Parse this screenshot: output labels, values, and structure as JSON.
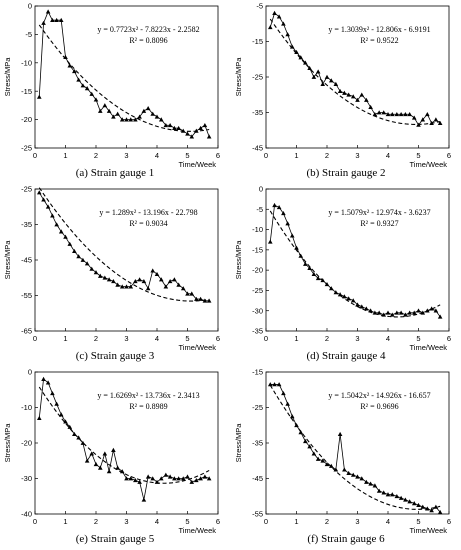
{
  "chart_data": [
    {
      "type": "line",
      "caption": "(a) Strain gauge 1",
      "xlabel": "Time/Week",
      "ylabel": "Stress/MPa",
      "xlim": [
        0,
        6
      ],
      "ylim": [
        -25,
        0
      ],
      "xticks": [
        "0",
        "1",
        "2",
        "3",
        "4",
        "5",
        "6"
      ],
      "yticks": [
        "0",
        "-5",
        "-10",
        "-15",
        "-20",
        "-25"
      ],
      "fit_equation": "y = 0.7723x² - 7.8223x - 2.2582",
      "r_squared": "R² = 0.8096",
      "fit": [
        0.7723,
        -7.8223,
        -2.2582
      ],
      "x": [
        0.14,
        0.28,
        0.43,
        0.57,
        0.71,
        0.86,
        1.0,
        1.14,
        1.29,
        1.43,
        1.57,
        1.71,
        1.86,
        2.0,
        2.14,
        2.29,
        2.43,
        2.57,
        2.71,
        2.86,
        3.0,
        3.14,
        3.29,
        3.43,
        3.57,
        3.71,
        3.86,
        4.0,
        4.14,
        4.29,
        4.43,
        4.57,
        4.71,
        4.86,
        5.0,
        5.14,
        5.29,
        5.43,
        5.57,
        5.71
      ],
      "y": [
        -16.0,
        -3.0,
        -1.0,
        -2.5,
        -2.5,
        -2.5,
        -9.0,
        -10.5,
        -11.5,
        -13.0,
        -14.0,
        -14.5,
        -15.5,
        -16.5,
        -18.5,
        -17.5,
        -18.5,
        -19.5,
        -19.0,
        -20.0,
        -20.0,
        -20.0,
        -20.0,
        -19.5,
        -18.5,
        -18.0,
        -19.0,
        -19.5,
        -20.0,
        -21.0,
        -21.0,
        -21.5,
        -21.5,
        -22.0,
        -22.5,
        -23.0,
        -22.0,
        -21.5,
        -21.0,
        -23.0
      ]
    },
    {
      "type": "line",
      "caption": "(b) Strain gauge 2",
      "xlabel": "Time/Week",
      "ylabel": "Stress/MPa",
      "xlim": [
        0,
        6
      ],
      "ylim": [
        -45,
        -5
      ],
      "xticks": [
        "0",
        "1",
        "2",
        "3",
        "4",
        "5",
        "6"
      ],
      "yticks": [
        "-5",
        "-15",
        "-25",
        "-35",
        "-45"
      ],
      "fit_equation": "y = 1.3039x² - 12.806x - 6.9191",
      "r_squared": "R² = 0.9522",
      "fit": [
        1.3039,
        -12.806,
        -6.9191
      ],
      "x": [
        0.14,
        0.28,
        0.43,
        0.57,
        0.71,
        0.86,
        1.0,
        1.14,
        1.29,
        1.43,
        1.57,
        1.71,
        1.86,
        2.0,
        2.14,
        2.29,
        2.43,
        2.57,
        2.71,
        2.86,
        3.0,
        3.14,
        3.29,
        3.43,
        3.57,
        3.71,
        3.86,
        4.0,
        4.14,
        4.29,
        4.43,
        4.57,
        4.71,
        4.86,
        5.0,
        5.14,
        5.29,
        5.43,
        5.57,
        5.71
      ],
      "y": [
        -11.0,
        -7.0,
        -8.0,
        -10.0,
        -13.0,
        -16.5,
        -18.0,
        -19.5,
        -21.0,
        -22.5,
        -25.0,
        -23.5,
        -27.0,
        -25.0,
        -26.0,
        -27.0,
        -29.0,
        -29.5,
        -30.0,
        -30.5,
        -31.5,
        -30.0,
        -31.5,
        -33.5,
        -35.5,
        -35.0,
        -35.0,
        -35.5,
        -35.5,
        -35.5,
        -35.5,
        -35.5,
        -35.5,
        -36.5,
        -38.5,
        -37.0,
        -35.5,
        -38.0,
        -37.0,
        -38.0
      ]
    },
    {
      "type": "line",
      "caption": "(c) Strain gauge 3",
      "xlabel": "Time/Week",
      "ylabel": "Stress/MPa",
      "xlim": [
        0,
        6
      ],
      "ylim": [
        -65,
        -25
      ],
      "xticks": [
        "0",
        "1",
        "2",
        "3",
        "4",
        "5",
        "6"
      ],
      "yticks": [
        "-25",
        "-35",
        "-45",
        "-55",
        "-65"
      ],
      "fit_equation": "y = 1.289x² - 13.196x - 22.798",
      "r_squared": "R² = 0.9034",
      "fit": [
        1.289,
        -13.196,
        -22.798
      ],
      "x": [
        0.14,
        0.28,
        0.43,
        0.57,
        0.71,
        0.86,
        1.0,
        1.14,
        1.29,
        1.43,
        1.57,
        1.71,
        1.86,
        2.0,
        2.14,
        2.29,
        2.43,
        2.57,
        2.71,
        2.86,
        3.0,
        3.14,
        3.29,
        3.43,
        3.57,
        3.71,
        3.86,
        4.0,
        4.14,
        4.29,
        4.43,
        4.57,
        4.71,
        4.86,
        5.0,
        5.14,
        5.29,
        5.43,
        5.57,
        5.71
      ],
      "y": [
        -26.0,
        -28.0,
        -30.0,
        -32.5,
        -35.0,
        -37.0,
        -38.5,
        -40.5,
        -42.5,
        -44.0,
        -45.0,
        -46.0,
        -47.5,
        -48.5,
        -49.5,
        -50.0,
        -50.5,
        -51.0,
        -52.0,
        -52.5,
        -52.5,
        -52.5,
        -51.0,
        -50.5,
        -51.0,
        -53.0,
        -48.0,
        -49.0,
        -50.5,
        -52.5,
        -51.0,
        -50.5,
        -52.0,
        -53.0,
        -54.5,
        -54.5,
        -56.0,
        -56.0,
        -56.5,
        -56.5
      ]
    },
    {
      "type": "line",
      "caption": "(d) Strain gauge 4",
      "xlabel": "Time/Week",
      "ylabel": "Stress/MPa",
      "xlim": [
        0,
        6
      ],
      "ylim": [
        -35,
        0
      ],
      "xticks": [
        "0",
        "1",
        "2",
        "3",
        "4",
        "5",
        "6"
      ],
      "yticks": [
        "0",
        "-5",
        "-10",
        "-15",
        "-20",
        "-25",
        "-30",
        "-35"
      ],
      "fit_equation": "y = 1.5079x² - 12.974x - 3.6237",
      "r_squared": "R² = 0.9327",
      "fit": [
        1.5079,
        -12.974,
        -3.6237
      ],
      "x": [
        0.14,
        0.28,
        0.43,
        0.57,
        0.71,
        0.86,
        1.0,
        1.14,
        1.29,
        1.43,
        1.57,
        1.71,
        1.86,
        2.0,
        2.14,
        2.29,
        2.43,
        2.57,
        2.71,
        2.86,
        3.0,
        3.14,
        3.29,
        3.43,
        3.57,
        3.71,
        3.86,
        4.0,
        4.14,
        4.29,
        4.43,
        4.57,
        4.71,
        4.86,
        5.0,
        5.14,
        5.29,
        5.43,
        5.57,
        5.71
      ],
      "y": [
        -13.0,
        -4.0,
        -4.5,
        -6.0,
        -8.5,
        -11.5,
        -14.5,
        -16.5,
        -18.5,
        -19.5,
        -21.0,
        -22.0,
        -22.5,
        -23.5,
        -24.5,
        -25.5,
        -26.0,
        -26.5,
        -27.0,
        -27.5,
        -28.5,
        -29.0,
        -29.5,
        -30.0,
        -30.5,
        -30.5,
        -31.0,
        -30.5,
        -31.0,
        -30.5,
        -30.5,
        -31.0,
        -30.5,
        -30.5,
        -30.0,
        -30.5,
        -30.0,
        -29.5,
        -30.0,
        -31.5
      ]
    },
    {
      "type": "line",
      "caption": "(e) Strain gauge 5",
      "xlabel": "Time/Week",
      "ylabel": "Stress/MPa",
      "xlim": [
        0,
        6
      ],
      "ylim": [
        -40,
        0
      ],
      "xticks": [
        "0",
        "1",
        "2",
        "3",
        "4",
        "5",
        "6"
      ],
      "yticks": [
        "0",
        "-10",
        "-20",
        "-30",
        "-40"
      ],
      "fit_equation": "y = 1.6269x² - 13.736x - 2.3413",
      "r_squared": "R² = 0.8989",
      "fit": [
        1.6269,
        -13.736,
        -2.3413
      ],
      "x": [
        0.14,
        0.28,
        0.43,
        0.57,
        0.71,
        0.86,
        1.0,
        1.14,
        1.29,
        1.43,
        1.57,
        1.71,
        1.86,
        2.0,
        2.14,
        2.29,
        2.43,
        2.57,
        2.71,
        2.86,
        3.0,
        3.14,
        3.29,
        3.43,
        3.57,
        3.71,
        3.86,
        4.0,
        4.14,
        4.29,
        4.43,
        4.57,
        4.71,
        4.86,
        5.0,
        5.14,
        5.29,
        5.43,
        5.57,
        5.71
      ],
      "y": [
        -13.0,
        -2.0,
        -3.0,
        -6.0,
        -9.0,
        -12.0,
        -14.0,
        -15.5,
        -17.5,
        -18.5,
        -20.0,
        -25.0,
        -23.0,
        -26.0,
        -27.0,
        -23.0,
        -28.0,
        -22.0,
        -27.0,
        -28.0,
        -30.0,
        -30.0,
        -30.5,
        -31.0,
        -36.0,
        -29.5,
        -30.0,
        -31.0,
        -30.0,
        -29.0,
        -29.5,
        -30.0,
        -30.0,
        -30.0,
        -29.5,
        -31.0,
        -30.5,
        -30.0,
        -29.5,
        -30.0
      ]
    },
    {
      "type": "line",
      "caption": "(f) Strain gauge 6",
      "xlabel": "Time/Week",
      "ylabel": "Stress/MPa",
      "xlim": [
        0,
        6
      ],
      "ylim": [
        -55,
        -15
      ],
      "xticks": [
        "0",
        "1",
        "2",
        "3",
        "4",
        "5",
        "6"
      ],
      "yticks": [
        "-15",
        "-25",
        "-35",
        "-45",
        "-55"
      ],
      "fit_equation": "y = 1.5042x² - 14.926x - 16.657",
      "r_squared": "R² = 0.9696",
      "fit": [
        1.5042,
        -14.926,
        -16.657
      ],
      "x": [
        0.14,
        0.28,
        0.43,
        0.57,
        0.71,
        0.86,
        1.0,
        1.14,
        1.29,
        1.43,
        1.57,
        1.71,
        1.86,
        2.0,
        2.14,
        2.29,
        2.43,
        2.57,
        2.71,
        2.86,
        3.0,
        3.14,
        3.29,
        3.43,
        3.57,
        3.71,
        3.86,
        4.0,
        4.14,
        4.29,
        4.43,
        4.57,
        4.71,
        4.86,
        5.0,
        5.14,
        5.29,
        5.43,
        5.57,
        5.71
      ],
      "y": [
        -18.5,
        -18.5,
        -18.5,
        -21.0,
        -24.0,
        -27.5,
        -30.0,
        -32.0,
        -34.5,
        -36.0,
        -38.0,
        -39.5,
        -40.0,
        -41.0,
        -41.5,
        -42.5,
        -32.5,
        -42.5,
        -43.5,
        -44.0,
        -44.5,
        -45.0,
        -46.0,
        -46.5,
        -47.0,
        -48.5,
        -49.0,
        -49.5,
        -49.5,
        -50.0,
        -50.5,
        -51.0,
        -51.5,
        -52.0,
        -52.5,
        -53.0,
        -53.5,
        -54.0,
        -53.0,
        -54.5
      ]
    }
  ]
}
